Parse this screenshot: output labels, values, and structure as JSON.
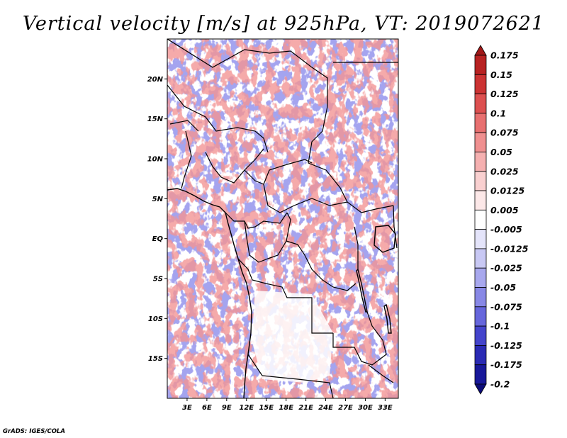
{
  "title": "Vertical velocity [m/s] at 925hPa, VT: 2019072621",
  "footer": "GrADS: IGES/COLA",
  "map": {
    "variable": "Vertical velocity",
    "units": "m/s",
    "level": "925hPa",
    "valid_time": "2019072621",
    "region": "Central Africa",
    "lon_range": [
      0,
      35
    ],
    "lat_range": [
      -20,
      25
    ],
    "y_ticks": [
      {
        "lat": 20,
        "label": "20N"
      },
      {
        "lat": 15,
        "label": "15N"
      },
      {
        "lat": 10,
        "label": "10N"
      },
      {
        "lat": 5,
        "label": "5N"
      },
      {
        "lat": 0,
        "label": "EQ"
      },
      {
        "lat": -5,
        "label": "5S"
      },
      {
        "lat": -10,
        "label": "10S"
      },
      {
        "lat": -15,
        "label": "15S"
      }
    ],
    "x_ticks": [
      {
        "lon": 3,
        "label": "3E"
      },
      {
        "lon": 6,
        "label": "6E"
      },
      {
        "lon": 9,
        "label": "9E"
      },
      {
        "lon": 12,
        "label": "12E"
      },
      {
        "lon": 15,
        "label": "15E"
      },
      {
        "lon": 18,
        "label": "18E"
      },
      {
        "lon": 21,
        "label": "21E"
      },
      {
        "lon": 24,
        "label": "24E"
      },
      {
        "lon": 27,
        "label": "27E"
      },
      {
        "lon": 30,
        "label": "30E"
      },
      {
        "lon": 33,
        "label": "33E"
      }
    ]
  },
  "colorbar": {
    "labels": [
      "0.175",
      "0.15",
      "0.125",
      "0.1",
      "0.075",
      "0.05",
      "0.025",
      "0.0125",
      "0.005",
      "-0.005",
      "-0.0125",
      "-0.025",
      "-0.05",
      "-0.075",
      "-0.1",
      "-0.125",
      "-0.175",
      "-0.2"
    ],
    "colors": [
      "#a01818",
      "#b82222",
      "#cc3333",
      "#dd5050",
      "#e87070",
      "#f09090",
      "#f5b0b0",
      "#f9d0d0",
      "#fce8e8",
      "#ffffff",
      "#e4e4fa",
      "#c8c8f4",
      "#a8a8ee",
      "#8888e6",
      "#6666dc",
      "#4444cc",
      "#2a2ab4",
      "#18189a",
      "#0c0c78"
    ]
  },
  "colors": {
    "positive": "#d84040",
    "negative": "#4040d0",
    "background": "#ffffff"
  }
}
